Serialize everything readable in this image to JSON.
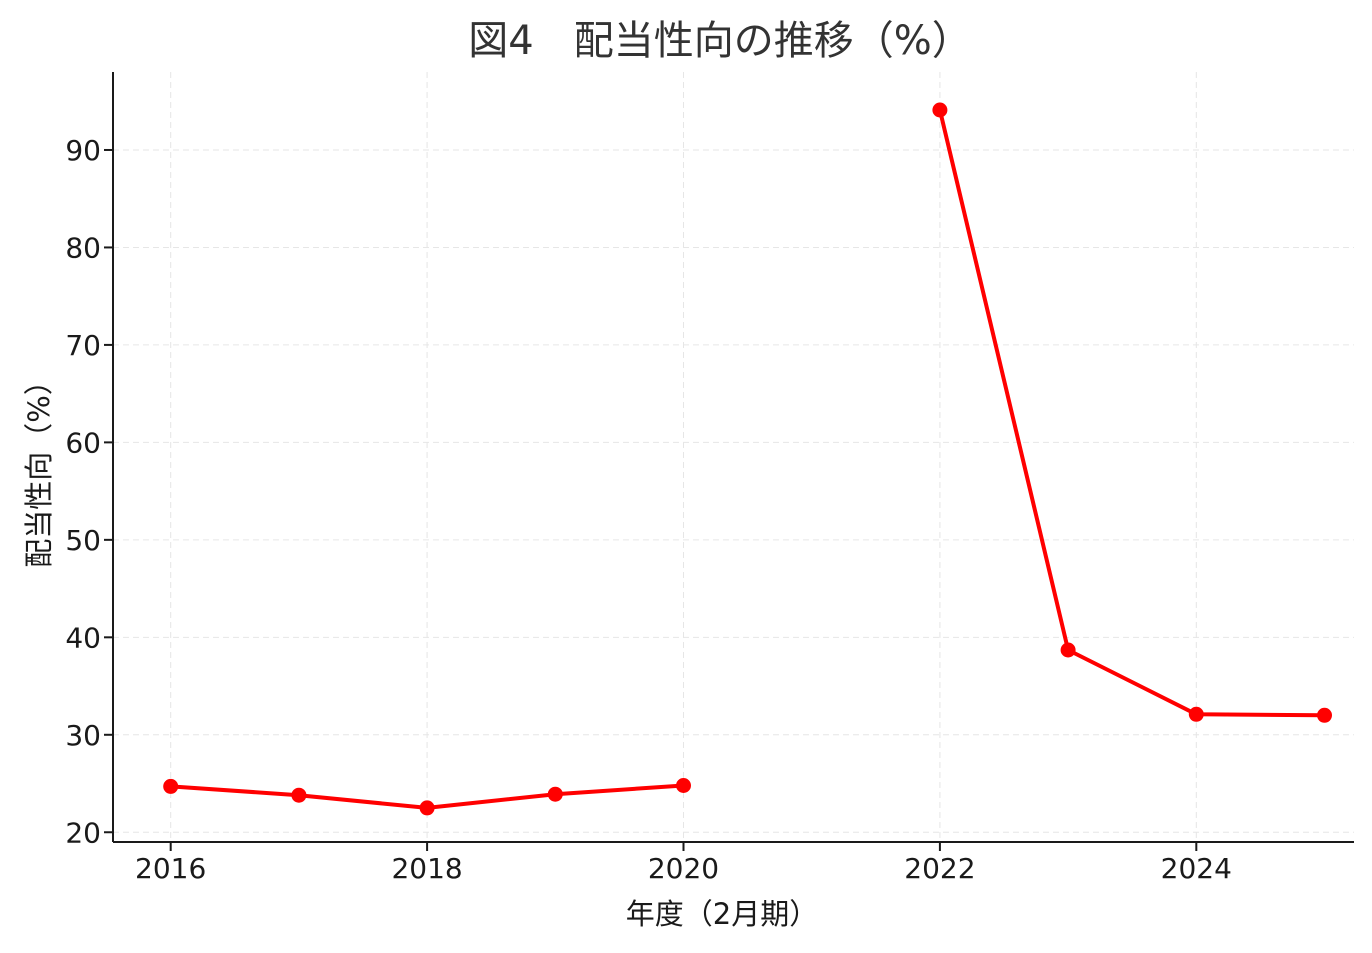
{
  "chart_data": {
    "type": "line",
    "title": "図4　配当性向の推移（%）",
    "xlabel": "年度（2月期）",
    "ylabel": "配当性向（%）",
    "xlim": [
      2015.55,
      2025.23
    ],
    "ylim": [
      19.0,
      98.0
    ],
    "x_ticks": [
      2016,
      2018,
      2020,
      2022,
      2024
    ],
    "y_ticks": [
      20,
      30,
      40,
      50,
      60,
      70,
      80,
      90
    ],
    "grid": true,
    "color": "#ff0000",
    "series": [
      {
        "segments": [
          [
            {
              "x": 2016,
              "y": 24.7
            },
            {
              "x": 2017,
              "y": 23.8
            },
            {
              "x": 2018,
              "y": 22.5
            },
            {
              "x": 2019,
              "y": 23.9
            },
            {
              "x": 2020,
              "y": 24.8
            }
          ],
          [
            {
              "x": 2022,
              "y": 94.1
            },
            {
              "x": 2023,
              "y": 38.7
            },
            {
              "x": 2024,
              "y": 32.1
            },
            {
              "x": 2025,
              "y": 32.0
            }
          ]
        ]
      }
    ]
  }
}
